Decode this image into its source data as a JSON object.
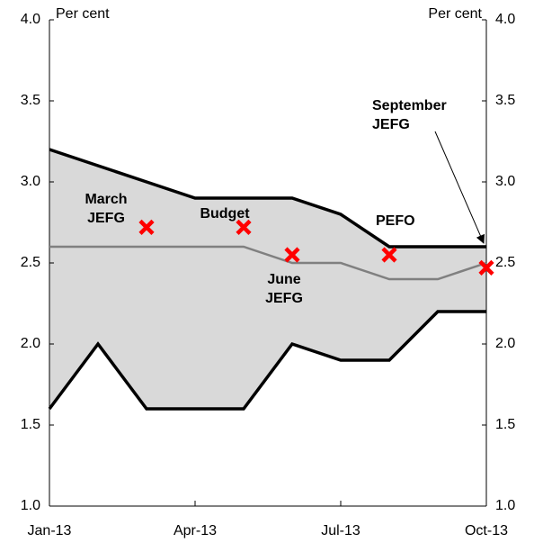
{
  "chart_data": {
    "type": "line",
    "categories": [
      "Jan-13",
      null,
      null,
      "Apr-13",
      null,
      null,
      "Jul-13",
      null,
      null,
      "Oct-13"
    ],
    "y_label": "Per cent",
    "y2_label": "Per cent",
    "ylim": [
      1.0,
      4.0
    ],
    "yticks": [
      {
        "value": 1.0,
        "label": "1.0"
      },
      {
        "value": 1.5,
        "label": "1.5"
      },
      {
        "value": 2.0,
        "label": "2.0"
      },
      {
        "value": 2.5,
        "label": "2.5"
      },
      {
        "value": 3.0,
        "label": "3.0"
      },
      {
        "value": 3.5,
        "label": "3.5"
      },
      {
        "value": 4.0,
        "label": "4.0"
      }
    ],
    "y2lim": [
      1.0,
      4.0
    ],
    "y2ticks": [
      {
        "value": 1.0,
        "label": "1.0"
      },
      {
        "value": 1.5,
        "label": "1.5"
      },
      {
        "value": 2.0,
        "label": "2.0"
      },
      {
        "value": 2.5,
        "label": "2.5"
      },
      {
        "value": 3.0,
        "label": "3.0"
      },
      {
        "value": 3.5,
        "label": "3.5"
      },
      {
        "value": 4.0,
        "label": "4.0"
      }
    ],
    "band_color": "#d9d9d9",
    "series": [
      {
        "color": "#000000",
        "values": [
          3.2,
          3.1,
          3.0,
          2.9,
          2.9,
          2.9,
          2.8,
          2.6,
          2.6,
          2.6
        ]
      },
      {
        "color": "#000000",
        "values": [
          1.6,
          2.0,
          1.6,
          1.6,
          1.6,
          2.0,
          1.9,
          1.9,
          2.2,
          2.2
        ]
      },
      {
        "color": "#808080",
        "values": [
          2.6,
          2.6,
          2.6,
          2.6,
          2.6,
          2.5,
          2.5,
          2.4,
          2.4,
          2.5
        ]
      }
    ],
    "markers": {
      "color": "#ff0000",
      "values": [
        null,
        null,
        2.72,
        null,
        2.72,
        2.55,
        null,
        2.55,
        null,
        2.47
      ]
    },
    "annotations": [
      {
        "lines": [
          "March",
          "JEFG"
        ]
      },
      {
        "lines": [
          "Budget"
        ]
      },
      {
        "lines": [
          "June",
          "JEFG"
        ]
      },
      {
        "lines": [
          "PEFO"
        ]
      },
      {
        "lines": [
          "September",
          "JEFG"
        ]
      }
    ]
  }
}
